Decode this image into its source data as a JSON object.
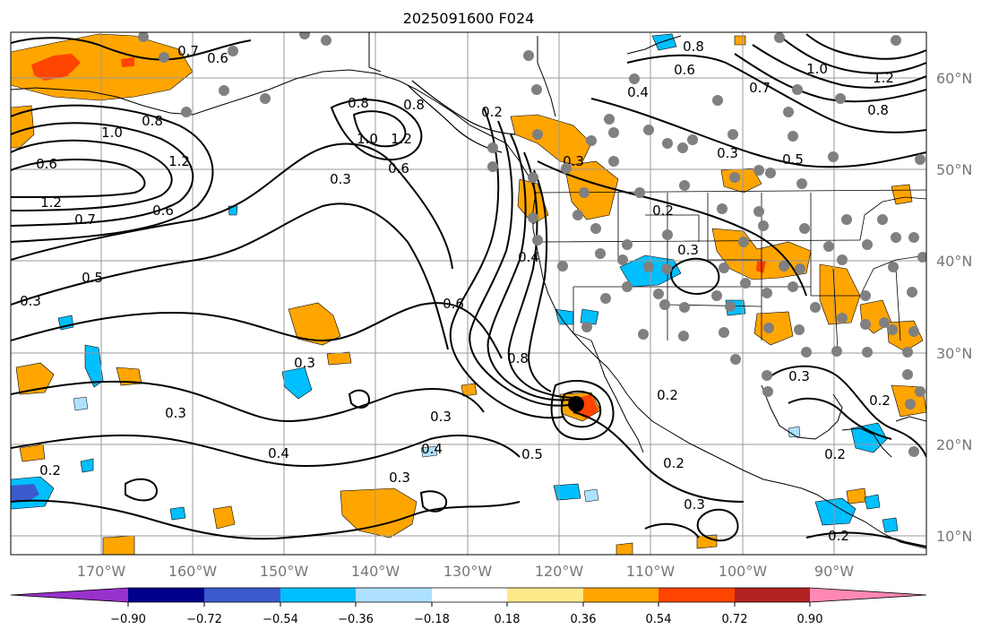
{
  "title": "2025091600 F024",
  "longitude_labels": [
    "170°W",
    "160°W",
    "150°W",
    "140°W",
    "130°W",
    "120°W",
    "110°W",
    "100°W",
    "90°W"
  ],
  "latitude_labels": [
    "60°N",
    "50°N",
    "40°N",
    "30°N",
    "20°N",
    "10°N"
  ],
  "colorbar": {
    "colors": [
      "#9932cc",
      "#00008b",
      "#3b5bcc",
      "#00bfff",
      "#aee0ff",
      "#ffffff",
      "#ffe88a",
      "#ffa500",
      "#ff4500",
      "#b22222",
      "#ff88b4"
    ],
    "tick_labels": [
      "−0.90",
      "−0.72",
      "−0.54",
      "−0.36",
      "−0.18",
      "0.18",
      "0.36",
      "0.54",
      "0.72",
      "0.90"
    ]
  },
  "contour_labels": [
    "0.7",
    "0.6",
    "0.8",
    "1.0",
    "0.6",
    "1.2",
    "1.0",
    "1.2",
    "0.8",
    "1.2",
    "0.7",
    "0.6",
    "0.8",
    "0.8",
    "0.6",
    "0.4",
    "0.3",
    "0.6",
    "0.2",
    "0.3",
    "0.2",
    "0.3",
    "0.4",
    "0.6",
    "0.8",
    "0.5",
    "0.3",
    "0.3",
    "0.3",
    "0.4",
    "0.4",
    "0.2",
    "0.5",
    "0.3",
    "0.2",
    "0.2",
    "0.3",
    "0.3",
    "0.2",
    "0.2",
    "0.3",
    "0.2",
    "1.0",
    "1.2",
    "0.8",
    "0.7",
    "0.5",
    "0.3"
  ]
}
